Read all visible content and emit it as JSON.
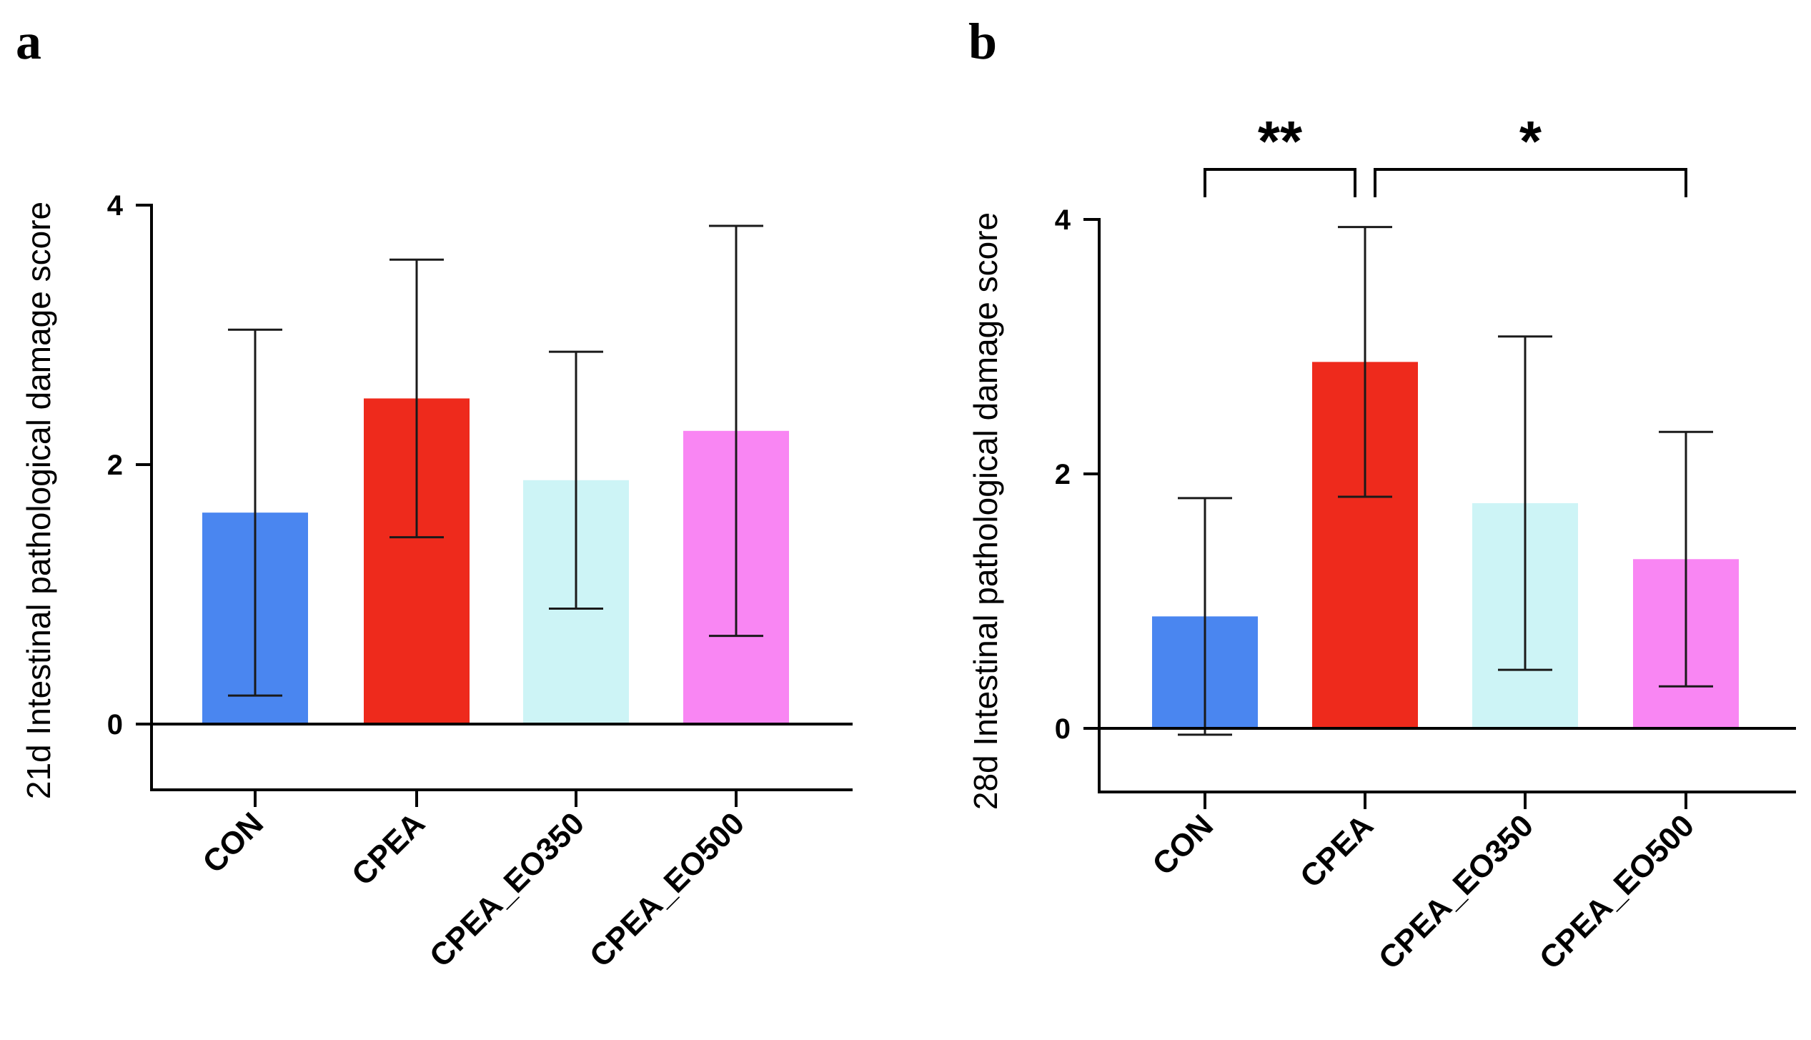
{
  "chart_data": [
    {
      "type": "bar",
      "panel": "a",
      "title": "",
      "xlabel": "",
      "ylabel": "21d Intestinal pathological damage score",
      "categories": [
        "CON",
        "CPEA",
        "CPEA_EO350",
        "CPEA_EO500"
      ],
      "values": [
        1.63,
        2.51,
        1.88,
        2.26
      ],
      "error": [
        1.41,
        1.07,
        0.99,
        1.58
      ],
      "colors": [
        "#4a86f0",
        "#ee2a1c",
        "#cdf4f6",
        "#f986f3"
      ],
      "ylim": [
        -0.5,
        4
      ],
      "yticks": [
        0,
        2,
        4
      ],
      "grid": false,
      "significance": []
    },
    {
      "type": "bar",
      "panel": "b",
      "title": "",
      "xlabel": "",
      "ylabel": "28d Intestinal pathological damage score",
      "categories": [
        "CON",
        "CPEA",
        "CPEA_EO350",
        "CPEA_EO500"
      ],
      "values": [
        0.88,
        2.88,
        1.77,
        1.33
      ],
      "error": [
        0.93,
        1.06,
        1.31,
        1.0
      ],
      "colors": [
        "#4a86f0",
        "#ee2a1c",
        "#cdf4f6",
        "#f986f3"
      ],
      "ylim": [
        -0.5,
        4
      ],
      "yticks": [
        0,
        2,
        4
      ],
      "grid": false,
      "significance": [
        {
          "from": 0,
          "to": 1,
          "label": "**"
        },
        {
          "from": 1,
          "to": 3,
          "label": "*"
        }
      ]
    }
  ]
}
